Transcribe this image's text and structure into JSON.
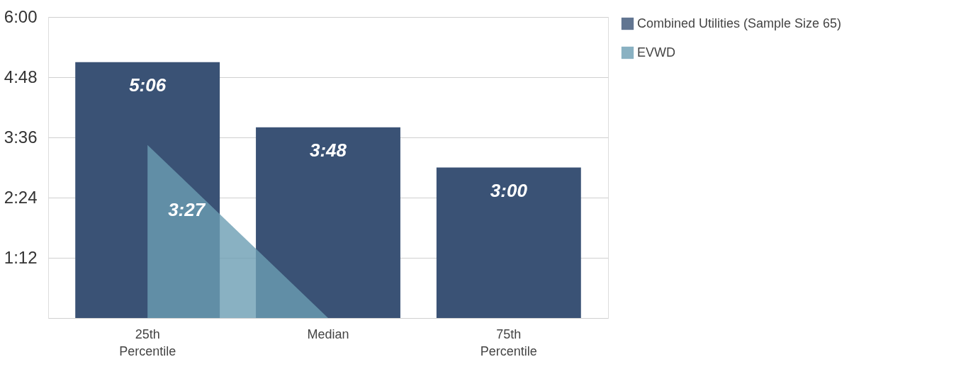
{
  "chart_data": {
    "type": "bar",
    "categories": [
      "25th Percentile",
      "Median",
      "75th Percentile"
    ],
    "series": [
      {
        "name": "Combined Utilities (Sample Size 65)",
        "type": "bar",
        "color": "#3a5275",
        "values": [
          5.1,
          3.8,
          3.0
        ],
        "value_labels": [
          "5:06",
          "3:48",
          "3:00"
        ]
      },
      {
        "name": "EVWD",
        "type": "area",
        "color": "#6b9db3",
        "values": [
          3.45,
          0,
          null
        ],
        "value_labels": [
          "3:27",
          null,
          null
        ]
      }
    ],
    "ylim": [
      0,
      6
    ],
    "yticks": [
      {
        "value": 0,
        "label": null
      },
      {
        "value": 1.2,
        "label": "1:12"
      },
      {
        "value": 2.4,
        "label": "2:24"
      },
      {
        "value": 3.6,
        "label": "3:36"
      },
      {
        "value": 4.8,
        "label": "4:48"
      },
      {
        "value": 6.0,
        "label": "6:00"
      }
    ],
    "grid": "y",
    "legend": "right"
  }
}
